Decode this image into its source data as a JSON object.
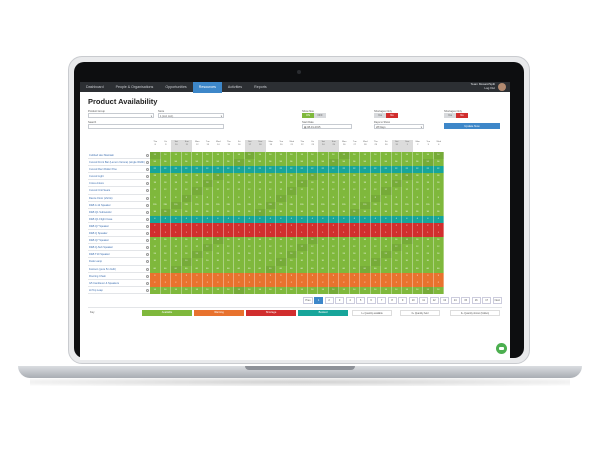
{
  "nav": {
    "items": [
      "Dashboard",
      "People & Organisations",
      "Opportunities",
      "Resources",
      "Activities",
      "Reports"
    ],
    "active_index": 3,
    "user": {
      "name": "Team Mosaic/Split",
      "sub": "Log Out"
    }
  },
  "page": {
    "title": "Product Availability"
  },
  "filters": {
    "product_group_label": "Product Group",
    "store_label": "Store",
    "store_value": "1 (Ltd. Ltd.)",
    "search_label": "Search",
    "show_nos_label": "Show Nos",
    "show_nos_on": "ON",
    "show_nos_off": "OFF",
    "start_date_label": "Start Date",
    "start_date_value": "08-01-2015",
    "shortages_label": "Shortages Only",
    "yes": "Yes",
    "no": "No",
    "days_label": "Days to Show",
    "days_value": "28 Days",
    "update_label": "Update Now"
  },
  "colors": {
    "available": "#7fb83c",
    "warning": "#e8722e",
    "shortage": "#d12e2e",
    "booked": "#17a59a",
    "accent": "#3d87c9"
  },
  "products": [
    "Cubbed Hex Maintain",
    "Curved Front Bar (Lemon Verona) (single Width)",
    "Curved Rect Roller Pine",
    "Curved Light",
    "Cross Antore",
    "Curved Unit Sears",
    "Dance Floor (shrink)",
    "D&B 4-12 Speaker",
    "D&B Q1 Subwoofer",
    "D&B Q1 Flight Case",
    "D&B Q7 Speaker",
    "D&B Q Speaker",
    "D&B Q7 Speaker",
    "D&B Q-Sub Speaker",
    "D&B T10 Speaker",
    "Dusk Lamp",
    "Festoon (pure 5m bulb)",
    "Flooring Chain",
    "G5 Cantilever & Speakers",
    "Hi Top Leap"
  ],
  "days": [
    {
      "d": "Thu",
      "n": "8",
      "w": false
    },
    {
      "d": "Fri",
      "n": "9",
      "w": false
    },
    {
      "d": "Sat",
      "n": "10",
      "w": true
    },
    {
      "d": "Sun",
      "n": "11",
      "w": true
    },
    {
      "d": "Mon",
      "n": "12",
      "w": false
    },
    {
      "d": "Tue",
      "n": "13",
      "w": false
    },
    {
      "d": "Wed",
      "n": "14",
      "w": false
    },
    {
      "d": "Thu",
      "n": "15",
      "w": false
    },
    {
      "d": "Fri",
      "n": "16",
      "w": false
    },
    {
      "d": "Sat",
      "n": "17",
      "w": true
    },
    {
      "d": "Sun",
      "n": "18",
      "w": true
    },
    {
      "d": "Mon",
      "n": "19",
      "w": false
    },
    {
      "d": "Tue",
      "n": "20",
      "w": false
    },
    {
      "d": "Wed",
      "n": "21",
      "w": false
    },
    {
      "d": "Thu",
      "n": "22",
      "w": false
    },
    {
      "d": "Fri",
      "n": "23",
      "w": false
    },
    {
      "d": "Sat",
      "n": "24",
      "w": true
    },
    {
      "d": "Sun",
      "n": "25",
      "w": true
    },
    {
      "d": "Mon",
      "n": "26",
      "w": false
    },
    {
      "d": "Tue",
      "n": "27",
      "w": false
    },
    {
      "d": "Wed",
      "n": "28",
      "w": false
    },
    {
      "d": "Thu",
      "n": "29",
      "w": false
    },
    {
      "d": "Fri",
      "n": "30",
      "w": false
    },
    {
      "d": "Sat",
      "n": "31",
      "w": true
    },
    {
      "d": "Sun",
      "n": "1",
      "w": true
    },
    {
      "d": "Mon",
      "n": "2",
      "w": false
    },
    {
      "d": "Tue",
      "n": "3",
      "w": false
    },
    {
      "d": "Wed",
      "n": "4",
      "w": false
    }
  ],
  "row_status": [
    "a",
    "a",
    "b",
    "a",
    "a",
    "a",
    "a",
    "a",
    "a",
    "b",
    "s",
    "s",
    "a",
    "a",
    "a",
    "a",
    "a",
    "w",
    "w",
    "a"
  ],
  "row_values": [
    "14",
    "96",
    "22",
    "28",
    "18",
    "12",
    "8",
    "220",
    "36",
    "4",
    "2",
    "1",
    "16",
    "12",
    "24",
    "10",
    "60",
    "3",
    "2",
    "14"
  ],
  "pagination": {
    "prev": "Prev",
    "next": "Next",
    "pages": [
      "1",
      "2",
      "3",
      "4",
      "5",
      "6",
      "7",
      "8",
      "9",
      "10",
      "11",
      "12",
      "13",
      "14",
      "15",
      "16",
      "17"
    ],
    "active": "1"
  },
  "key": {
    "label": "Key",
    "available": "Available",
    "warning": "Warning",
    "shortage": "Shortage",
    "booked": "Booked",
    "qty1": "1+ Quantity available",
    "qty2": "0+ Quantity held",
    "qty3": "0+ Quantity shown (hidden)"
  }
}
